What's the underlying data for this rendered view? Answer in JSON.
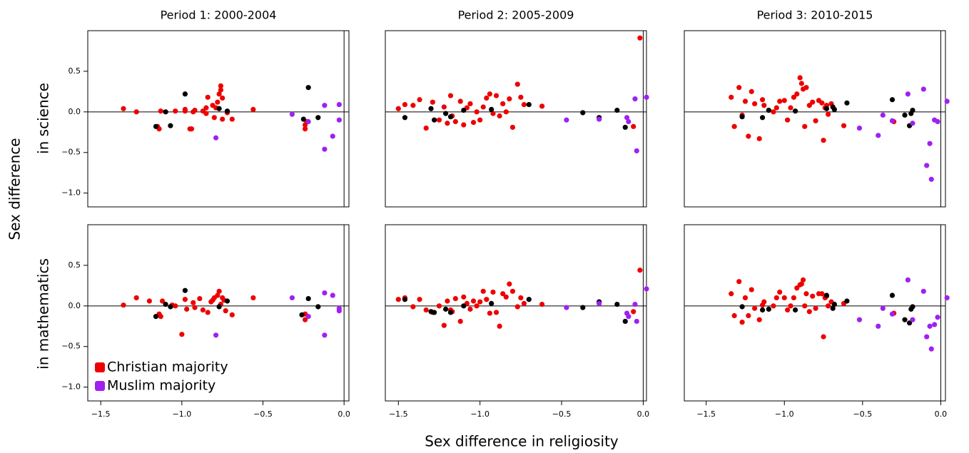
{
  "figure": {
    "xlabel": "Sex difference in religiosity",
    "ylabel": "Sex difference",
    "row_labels": [
      "in science",
      "in mathematics"
    ]
  },
  "chart_data": [
    {
      "type": "scatter",
      "title": "Period 1: 2000-2004",
      "xlim": [
        -1.58,
        0.03
      ],
      "ylim": [
        -1.17,
        1.0
      ],
      "hline": 0,
      "vline": 0,
      "yticks": [
        {
          "value": -1.0,
          "label": "−1.0"
        },
        {
          "value": -0.5,
          "label": "−0.5"
        },
        {
          "value": 0.0,
          "label": "0.0"
        },
        {
          "value": 0.5,
          "label": "0.5"
        }
      ],
      "series": [
        {
          "color": "#ee0000",
          "x": [
            -1.36,
            -1.28,
            -1.15,
            -1.14,
            -1.13,
            -1.04,
            -0.98,
            -0.98,
            -0.95,
            -0.94,
            -0.93,
            -0.92,
            -0.87,
            -0.85,
            -0.84,
            -0.81,
            -0.8,
            -0.79,
            -0.78,
            -0.77,
            -0.76,
            -0.76,
            -0.75,
            -0.75,
            -0.72,
            -0.69,
            -0.56,
            -0.24,
            -0.24,
            -0.23,
            -0.85
          ],
          "values": [
            0.04,
            0.0,
            -0.18,
            -0.21,
            0.01,
            0.01,
            0.03,
            0.01,
            -0.21,
            -0.21,
            0.0,
            0.02,
            0.01,
            -0.02,
            0.18,
            0.08,
            -0.07,
            0.05,
            0.12,
            0.22,
            0.27,
            0.32,
            0.17,
            -0.09,
            -0.01,
            -0.09,
            0.03,
            -0.16,
            -0.21,
            -0.12,
            0.05
          ]
        },
        {
          "color": "#000000",
          "x": [
            -1.16,
            -1.1,
            -1.07,
            -0.98,
            -0.77,
            -0.72,
            -0.25,
            -0.22,
            -0.16
          ],
          "values": [
            -0.18,
            0.0,
            -0.17,
            0.22,
            0.04,
            0.01,
            -0.09,
            0.3,
            -0.07
          ]
        },
        {
          "color": "#a020f0",
          "x": [
            -0.32,
            -0.22,
            -0.79,
            -0.12,
            -0.12,
            -0.07,
            -0.03,
            -0.03
          ],
          "values": [
            -0.03,
            -0.12,
            -0.32,
            0.08,
            -0.46,
            -0.3,
            0.09,
            -0.1
          ]
        }
      ]
    },
    {
      "type": "scatter",
      "title": "Period 2: 2005-2009",
      "xlim": [
        -1.58,
        0.02
      ],
      "ylim": [
        -1.17,
        1.0
      ],
      "hline": 0,
      "vline": 0,
      "series": [
        {
          "color": "#ee0000",
          "x": [
            -1.5,
            -1.46,
            -1.41,
            -1.37,
            -1.33,
            -1.29,
            -1.25,
            -1.22,
            -1.2,
            -1.18,
            -1.17,
            -1.15,
            -1.12,
            -1.1,
            -1.08,
            -1.06,
            -1.04,
            -1.02,
            -1.0,
            -0.98,
            -0.96,
            -0.94,
            -0.92,
            -0.9,
            -0.88,
            -0.86,
            -0.84,
            -0.82,
            -0.8,
            -0.77,
            -0.75,
            -0.73,
            -0.62,
            -0.06,
            -0.02
          ],
          "values": [
            0.04,
            0.09,
            0.08,
            0.15,
            -0.2,
            0.12,
            -0.1,
            0.06,
            -0.14,
            0.2,
            -0.05,
            -0.12,
            0.13,
            -0.16,
            0.05,
            0.1,
            -0.13,
            0.0,
            -0.1,
            0.06,
            0.17,
            0.22,
            -0.02,
            0.2,
            -0.05,
            0.1,
            0.0,
            0.16,
            -0.19,
            0.34,
            0.18,
            0.09,
            0.07,
            -0.18,
            0.91
          ]
        },
        {
          "color": "#000000",
          "x": [
            -1.46,
            -1.3,
            -1.28,
            -1.21,
            -1.18,
            -1.1,
            -0.93,
            -0.7,
            -0.37,
            -0.27,
            -0.16,
            -0.11
          ],
          "values": [
            -0.07,
            0.04,
            -0.1,
            -0.02,
            -0.06,
            0.02,
            0.03,
            0.09,
            -0.01,
            -0.07,
            0.02,
            -0.19
          ]
        },
        {
          "color": "#a020f0",
          "x": [
            -0.47,
            -0.27,
            -0.1,
            -0.09,
            -0.05,
            -0.04,
            0.02
          ],
          "values": [
            -0.1,
            -0.09,
            -0.07,
            -0.12,
            0.16,
            -0.48,
            0.18
          ]
        }
      ]
    },
    {
      "type": "scatter",
      "title": "Period 3: 2010-2015",
      "xlim": [
        -1.64,
        0.03
      ],
      "ylim": [
        -1.17,
        1.0
      ],
      "hline": 0,
      "vline": 0,
      "series": [
        {
          "color": "#ee0000",
          "x": [
            -1.34,
            -1.32,
            -1.29,
            -1.27,
            -1.25,
            -1.23,
            -1.21,
            -1.19,
            -1.16,
            -1.14,
            -1.13,
            -1.1,
            -1.07,
            -1.05,
            -1.03,
            -1.0,
            -0.98,
            -0.96,
            -0.94,
            -0.92,
            -0.9,
            -0.89,
            -0.88,
            -0.87,
            -0.86,
            -0.84,
            -0.82,
            -0.8,
            -0.78,
            -0.76,
            -0.75,
            -0.74,
            -0.73,
            -0.72,
            -0.7,
            -0.62,
            -0.3
          ],
          "values": [
            0.18,
            -0.18,
            0.3,
            -0.04,
            0.13,
            -0.3,
            0.25,
            0.1,
            -0.33,
            0.15,
            0.08,
            0.02,
            0.0,
            0.05,
            0.13,
            0.14,
            -0.1,
            0.05,
            0.18,
            0.22,
            0.42,
            0.35,
            0.28,
            -0.18,
            0.3,
            0.08,
            0.12,
            -0.11,
            0.14,
            0.11,
            -0.35,
            0.05,
            0.08,
            -0.03,
            0.1,
            -0.17,
            -0.12
          ]
        },
        {
          "color": "#000000",
          "x": [
            -1.27,
            -1.14,
            -1.1,
            -0.93,
            -0.73,
            -0.69,
            -0.68,
            -0.6,
            -0.31,
            -0.23,
            -0.2,
            -0.19,
            -0.18
          ],
          "values": [
            -0.06,
            -0.07,
            0.02,
            0.01,
            0.04,
            0.06,
            0.03,
            0.11,
            0.15,
            -0.04,
            -0.17,
            -0.02,
            0.02
          ]
        },
        {
          "color": "#a020f0",
          "x": [
            -0.37,
            -0.31,
            -0.21,
            -0.18,
            -0.11,
            -0.09,
            -0.07,
            -0.06,
            -0.04,
            -0.02,
            0.04,
            -0.52,
            -0.4
          ],
          "values": [
            -0.04,
            -0.11,
            0.22,
            -0.14,
            0.28,
            -0.66,
            -0.39,
            -0.83,
            -0.1,
            -0.12,
            0.13,
            -0.2,
            -0.29
          ]
        }
      ]
    },
    {
      "type": "scatter",
      "xlim": [
        -1.58,
        0.03
      ],
      "ylim": [
        -1.17,
        1.0
      ],
      "hline": 0,
      "vline": 0,
      "legend": "bottom-left",
      "yticks": [
        {
          "value": -1.0,
          "label": "−1.0"
        },
        {
          "value": -0.5,
          "label": "−0.5"
        },
        {
          "value": 0.0,
          "label": "0.0"
        },
        {
          "value": 0.5,
          "label": "0.5"
        }
      ],
      "xticks": [
        {
          "value": -1.5,
          "label": "−1.5"
        },
        {
          "value": -1.0,
          "label": "−1.0"
        },
        {
          "value": -0.5,
          "label": "−0.5"
        },
        {
          "value": 0.0,
          "label": "0.0"
        }
      ],
      "series": [
        {
          "name": "Christian majority",
          "color": "#ee0000",
          "x": [
            -1.36,
            -1.28,
            -1.2,
            -1.14,
            -1.13,
            -1.12,
            -1.06,
            -1.04,
            -1.0,
            -0.98,
            -0.97,
            -0.93,
            -0.92,
            -0.89,
            -0.87,
            -0.84,
            -0.82,
            -0.81,
            -0.8,
            -0.78,
            -0.77,
            -0.76,
            -0.75,
            -0.74,
            -0.73,
            -0.69,
            -0.56,
            -0.24,
            -0.24
          ],
          "values": [
            0.01,
            0.1,
            0.06,
            -0.1,
            -0.13,
            0.06,
            0.01,
            0.0,
            -0.35,
            0.08,
            -0.04,
            0.04,
            -0.02,
            0.09,
            -0.05,
            -0.08,
            0.05,
            0.07,
            0.1,
            0.13,
            0.18,
            0.02,
            0.1,
            0.07,
            -0.06,
            -0.11,
            0.1,
            -0.1,
            -0.17
          ]
        },
        {
          "color": "#000000",
          "x": [
            -1.16,
            -1.1,
            -1.07,
            -0.98,
            -0.77,
            -0.72,
            -0.26,
            -0.22,
            -0.16
          ],
          "values": [
            -0.13,
            0.02,
            -0.01,
            0.19,
            -0.01,
            0.06,
            -0.11,
            0.09,
            -0.01
          ]
        },
        {
          "name": "Muslim majority",
          "color": "#a020f0",
          "x": [
            -0.32,
            -0.22,
            -0.79,
            -0.12,
            -0.12,
            -0.07,
            -0.03,
            -0.03
          ],
          "values": [
            0.1,
            -0.13,
            -0.36,
            0.16,
            -0.36,
            0.13,
            -0.03,
            -0.06
          ]
        }
      ]
    },
    {
      "type": "scatter",
      "xlim": [
        -1.58,
        0.02
      ],
      "ylim": [
        -1.17,
        1.0
      ],
      "hline": 0,
      "vline": 0,
      "xticks": [
        {
          "value": -1.5,
          "label": "−1.5"
        },
        {
          "value": -1.0,
          "label": "−1.0"
        },
        {
          "value": -0.5,
          "label": "−0.5"
        },
        {
          "value": 0.0,
          "label": "0.0"
        }
      ],
      "series": [
        {
          "color": "#ee0000",
          "x": [
            -1.5,
            -1.46,
            -1.41,
            -1.37,
            -1.33,
            -1.29,
            -1.25,
            -1.22,
            -1.2,
            -1.18,
            -1.17,
            -1.15,
            -1.12,
            -1.1,
            -1.08,
            -1.06,
            -1.04,
            -1.02,
            -1.0,
            -0.98,
            -0.96,
            -0.94,
            -0.92,
            -0.9,
            -0.88,
            -0.86,
            -0.84,
            -0.82,
            -0.8,
            -0.77,
            -0.75,
            -0.73,
            -0.62,
            -0.06,
            -0.02
          ],
          "values": [
            0.08,
            0.1,
            -0.01,
            0.08,
            -0.05,
            -0.08,
            0.0,
            -0.24,
            0.06,
            -0.05,
            -0.07,
            0.09,
            -0.19,
            0.11,
            0.03,
            -0.04,
            0.06,
            0.0,
            0.05,
            0.18,
            0.08,
            -0.09,
            0.17,
            -0.08,
            -0.25,
            0.15,
            0.11,
            0.27,
            0.18,
            -0.01,
            0.1,
            0.03,
            0.02,
            -0.07,
            0.44
          ]
        },
        {
          "color": "#000000",
          "x": [
            -1.46,
            -1.3,
            -1.28,
            -1.21,
            -1.18,
            -1.1,
            -0.93,
            -0.7,
            -0.37,
            -0.27,
            -0.16,
            -0.11
          ],
          "values": [
            0.08,
            -0.07,
            -0.08,
            -0.04,
            -0.08,
            0.0,
            0.03,
            0.08,
            -0.02,
            0.05,
            0.02,
            -0.19
          ]
        },
        {
          "color": "#a020f0",
          "x": [
            -0.47,
            -0.27,
            -0.1,
            -0.09,
            -0.05,
            -0.04,
            0.02
          ],
          "values": [
            -0.02,
            0.03,
            -0.09,
            -0.13,
            0.02,
            -0.19,
            0.21
          ]
        }
      ]
    },
    {
      "type": "scatter",
      "xlim": [
        -1.64,
        0.03
      ],
      "ylim": [
        -1.17,
        1.0
      ],
      "hline": 0,
      "vline": 0,
      "xticks": [
        {
          "value": -1.5,
          "label": "−1.5"
        },
        {
          "value": -1.0,
          "label": "−1.0"
        },
        {
          "value": -0.5,
          "label": "−0.5"
        },
        {
          "value": 0.0,
          "label": "0.0"
        }
      ],
      "series": [
        {
          "color": "#ee0000",
          "x": [
            -1.34,
            -1.32,
            -1.29,
            -1.27,
            -1.25,
            -1.23,
            -1.21,
            -1.19,
            -1.16,
            -1.14,
            -1.13,
            -1.1,
            -1.07,
            -1.05,
            -1.03,
            -1.0,
            -0.98,
            -0.96,
            -0.94,
            -0.92,
            -0.9,
            -0.89,
            -0.88,
            -0.87,
            -0.86,
            -0.84,
            -0.82,
            -0.8,
            -0.78,
            -0.76,
            -0.75,
            -0.74,
            -0.73,
            -0.72,
            -0.7,
            -0.62,
            -0.3
          ],
          "values": [
            0.15,
            -0.12,
            0.3,
            -0.2,
            0.1,
            -0.12,
            0.2,
            -0.03,
            -0.17,
            0.01,
            0.05,
            -0.04,
            0.0,
            0.1,
            0.17,
            0.1,
            -0.05,
            0.0,
            0.1,
            0.22,
            0.26,
            0.27,
            0.32,
            0.0,
            0.15,
            -0.07,
            0.12,
            -0.03,
            0.15,
            0.15,
            -0.38,
            0.1,
            0.12,
            0.0,
            0.05,
            0.03,
            -0.09
          ]
        },
        {
          "color": "#000000",
          "x": [
            -1.27,
            -1.14,
            -1.1,
            -0.93,
            -0.73,
            -0.69,
            -0.68,
            -0.6,
            -0.31,
            -0.23,
            -0.2,
            -0.19,
            -0.18
          ],
          "values": [
            -0.01,
            -0.05,
            -0.04,
            -0.05,
            0.13,
            -0.03,
            0.02,
            0.06,
            0.13,
            -0.17,
            -0.21,
            -0.04,
            -0.01
          ]
        },
        {
          "color": "#a020f0",
          "x": [
            -0.37,
            -0.31,
            -0.21,
            -0.18,
            -0.11,
            -0.09,
            -0.07,
            -0.06,
            -0.04,
            -0.02,
            0.04,
            -0.52,
            -0.4
          ],
          "values": [
            -0.03,
            -0.1,
            0.32,
            -0.17,
            0.18,
            -0.38,
            -0.25,
            -0.53,
            -0.23,
            -0.14,
            0.1,
            -0.17,
            -0.25
          ]
        }
      ]
    }
  ]
}
